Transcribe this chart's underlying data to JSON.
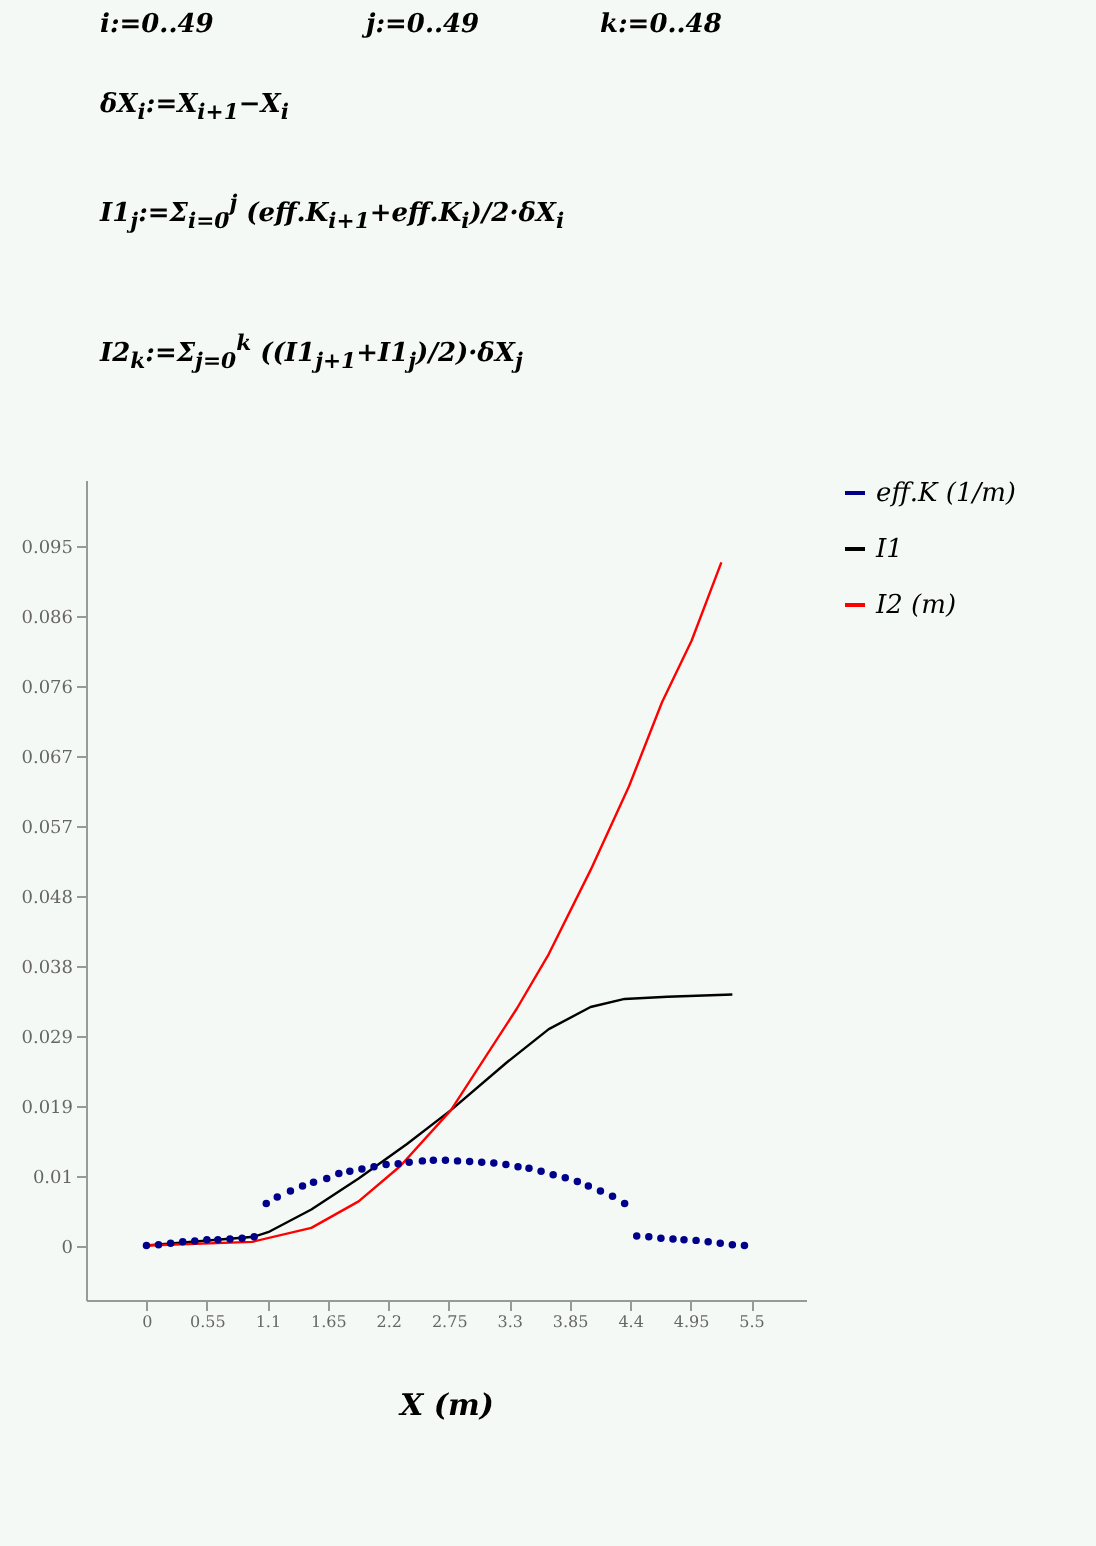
{
  "chart_data": {
    "type": "line",
    "annotations": [
      "i:=0..49",
      "j:=0..49",
      "k:=0..48",
      "δX$_{i}$:=X$_{i+1}$−X$_{i}$",
      "I1$_{j}$:=Σ$_{i=0}$$^{j}$ (eff.K$_{i+1}$+eff.K$_{i}$)/2·δX$_{i}$",
      "I2$_{k}$:=Σ$_{j=0}$$^{k}$ ((I1$_{j+1}$+I1$_{j}$)/2)·δX$_{j}$"
    ],
    "xlabel": "X (m)",
    "xlim": [
      -0.55,
      6.0
    ],
    "ylim": [
      -0.0074,
      0.104
    ],
    "xticks": [
      0,
      0.55,
      1.1,
      1.65,
      2.2,
      2.75,
      3.3,
      3.85,
      4.4,
      4.95,
      5.5
    ],
    "yticks": [
      {
        "value": 0,
        "label": "0"
      },
      {
        "value": 0.0095,
        "label": "0.01"
      },
      {
        "value": 0.019,
        "label": "0.019"
      },
      {
        "value": 0.0285,
        "label": "0.029"
      },
      {
        "value": 0.038,
        "label": "0.038"
      },
      {
        "value": 0.0475,
        "label": "0.048"
      },
      {
        "value": 0.057,
        "label": "0.057"
      },
      {
        "value": 0.0665,
        "label": "0.067"
      },
      {
        "value": 0.076,
        "label": "0.076"
      },
      {
        "value": 0.0855,
        "label": "0.086"
      },
      {
        "value": 0.095,
        "label": "0.095"
      }
    ],
    "grid": false,
    "legend": "right",
    "series": [
      {
        "name": "eff.K (1/m)",
        "type": "scatter",
        "marker": "circle",
        "color": "#00008b",
        "x": [
          0,
          0.11,
          0.22,
          0.33,
          0.44,
          0.55,
          0.65,
          0.76,
          0.87,
          0.98,
          1.09,
          1.19,
          1.31,
          1.42,
          1.52,
          1.64,
          1.75,
          1.85,
          1.96,
          2.07,
          2.18,
          2.29,
          2.39,
          2.51,
          2.61,
          2.72,
          2.83,
          2.94,
          3.05,
          3.16,
          3.27,
          3.38,
          3.48,
          3.59,
          3.7,
          3.81,
          3.92,
          4.02,
          4.13,
          4.24,
          4.35,
          4.46,
          4.57,
          4.68,
          4.79,
          4.89,
          5.0,
          5.11,
          5.22,
          5.33,
          5.44
        ],
        "values": [
          0,
          0.0001,
          0.0003,
          0.0005,
          0.0006,
          0.0008,
          0.0008,
          0.0009,
          0.001,
          0.0012,
          0.0057,
          0.0066,
          0.0074,
          0.0081,
          0.0086,
          0.0091,
          0.0098,
          0.0101,
          0.0104,
          0.0107,
          0.011,
          0.0111,
          0.0113,
          0.0115,
          0.0116,
          0.0116,
          0.0115,
          0.0114,
          0.0113,
          0.0112,
          0.011,
          0.0107,
          0.0105,
          0.0101,
          0.0096,
          0.0092,
          0.0087,
          0.0081,
          0.0074,
          0.0067,
          0.0057,
          0.0013,
          0.0012,
          0.001,
          0.0009,
          0.0008,
          0.0007,
          0.0005,
          0.0003,
          0.0001,
          0
        ]
      },
      {
        "name": "I1",
        "type": "line",
        "color": "#000000",
        "x": [
          0,
          0.98,
          1.12,
          1.5,
          1.93,
          2.37,
          2.77,
          3.28,
          3.66,
          4.04,
          4.35,
          4.74,
          5.33
        ],
        "values": [
          0,
          0.0012,
          0.0019,
          0.0049,
          0.0091,
          0.0138,
          0.0184,
          0.0249,
          0.0294,
          0.0324,
          0.0335,
          0.0338,
          0.0341
        ]
      },
      {
        "name": "I2 (m)",
        "type": "line",
        "color": "#ff0000",
        "x": [
          0,
          0.96,
          1.5,
          1.93,
          2.31,
          2.77,
          3.37,
          3.66,
          4.04,
          4.39,
          4.69,
          4.96,
          5.23
        ],
        "values": [
          0,
          0.0005,
          0.0024,
          0.006,
          0.0108,
          0.0184,
          0.0322,
          0.0396,
          0.051,
          0.0624,
          0.0738,
          0.0822,
          0.0928
        ]
      }
    ]
  }
}
